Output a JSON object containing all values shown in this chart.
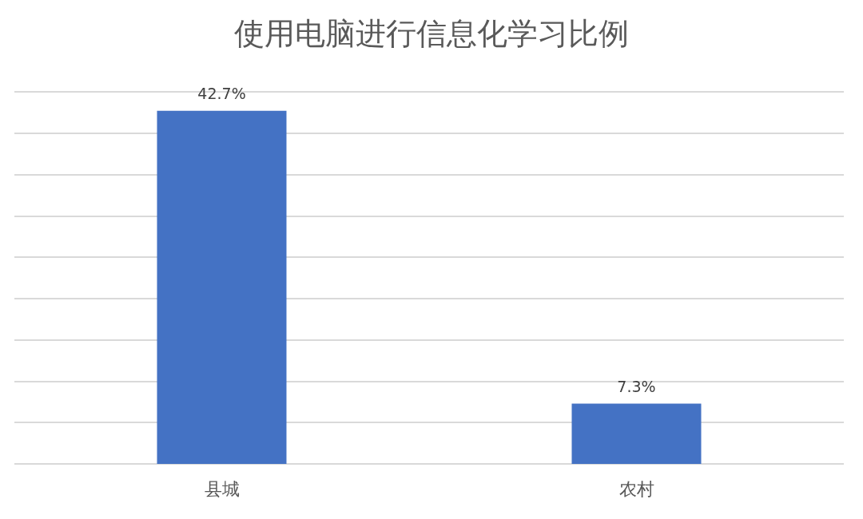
{
  "chart_data": {
    "type": "bar",
    "title": "使用电脑进行信息化学习比例",
    "categories": [
      "县城",
      "农村"
    ],
    "values": [
      42.7,
      7.3
    ],
    "value_labels": [
      "42.7%",
      "7.3%"
    ],
    "color": "#4472c4",
    "ylim": [
      0,
      45
    ],
    "yticks": [
      {
        "value": 0,
        "label": null
      },
      {
        "value": 5,
        "label": null
      },
      {
        "value": 10,
        "label": null
      },
      {
        "value": 15,
        "label": null
      },
      {
        "value": 20,
        "label": null
      },
      {
        "value": 25,
        "label": null
      },
      {
        "value": 30,
        "label": null
      },
      {
        "value": 35,
        "label": null
      },
      {
        "value": 40,
        "label": null
      },
      {
        "value": 45,
        "label": null
      }
    ],
    "grid": true
  }
}
